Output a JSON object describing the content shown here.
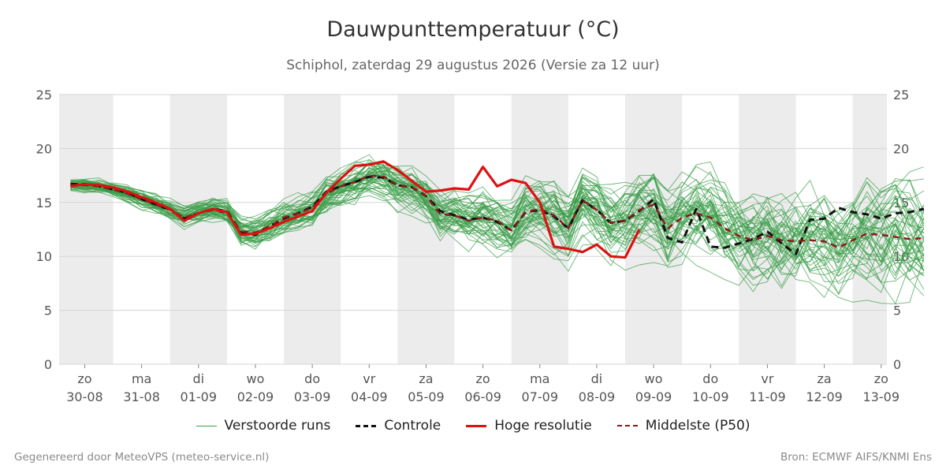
{
  "header": {
    "title": "Dauwpunttemperatuur (°C)",
    "subtitle": "Schiphol, zaterdag 29 augustus 2026 (Versie za 12 uur)"
  },
  "footer": {
    "left": "Gegenereerd door MeteoVPS (meteo-service.nl)",
    "right": "Bron: ECMWF AIFS/KNMI Ens"
  },
  "legend": [
    {
      "label": "Verstoorde runs",
      "color": "#3a9e48",
      "style": "thin"
    },
    {
      "label": "Controle",
      "color": "#111111",
      "style": "dashed"
    },
    {
      "label": "Hoge resolutie",
      "color": "#dd1111",
      "style": "solid"
    },
    {
      "label": "Middelste (P50)",
      "color": "#8b1a1a",
      "style": "dashed"
    }
  ],
  "chart_data": {
    "type": "line",
    "x_unit": "days since start of axis (day 0 = 29-08 00:00)",
    "xlim": [
      1.05,
      15.6
    ],
    "ylim": [
      0,
      25
    ],
    "y_ticks": [
      0,
      5,
      10,
      15,
      20,
      25
    ],
    "y_axis_both_sides": true,
    "grid": "horizontal",
    "shaded_days_alternating": true,
    "x_tick_labels": [
      {
        "day": "zo",
        "date": "30-08"
      },
      {
        "day": "ma",
        "date": "31-08"
      },
      {
        "day": "di",
        "date": "01-09"
      },
      {
        "day": "wo",
        "date": "02-09"
      },
      {
        "day": "do",
        "date": "03-09"
      },
      {
        "day": "vr",
        "date": "04-09"
      },
      {
        "day": "za",
        "date": "05-09"
      },
      {
        "day": "zo",
        "date": "06-09"
      },
      {
        "day": "ma",
        "date": "07-09"
      },
      {
        "day": "di",
        "date": "08-09"
      },
      {
        "day": "wo",
        "date": "09-09"
      },
      {
        "day": "do",
        "date": "10-09"
      },
      {
        "day": "vr",
        "date": "11-09"
      },
      {
        "day": "za",
        "date": "12-09"
      },
      {
        "day": "zo",
        "date": "13-09"
      }
    ],
    "x_step_days": 0.25,
    "x_first": 1.25,
    "series": [
      {
        "name": "Hoge resolutie",
        "color": "#dd1111",
        "values": [
          16.5,
          16.7,
          16.6,
          16.4,
          16.0,
          15.5,
          15.0,
          14.4,
          13.3,
          14.0,
          14.4,
          14.1,
          12.0,
          12.1,
          12.6,
          13.2,
          13.7,
          14.2,
          15.9,
          17.2,
          18.4,
          18.5,
          18.8,
          18.0,
          17.0,
          16.0,
          16.1,
          16.3,
          16.2,
          18.3,
          16.5,
          17.1,
          16.8,
          15.0,
          10.9,
          10.7,
          10.4,
          11.1,
          10.0,
          9.9,
          12.5,
          null,
          null,
          null,
          null,
          null,
          null,
          null,
          null,
          null,
          null,
          null,
          null,
          null,
          null,
          null,
          null,
          null
        ]
      },
      {
        "name": "Controle",
        "color": "#111111",
        "values": [
          16.7,
          16.7,
          16.5,
          16.2,
          15.9,
          15.3,
          14.8,
          14.3,
          13.5,
          14.0,
          14.4,
          14.2,
          12.2,
          12.0,
          12.8,
          13.5,
          14.0,
          14.6,
          16.0,
          16.5,
          16.9,
          17.4,
          17.3,
          16.6,
          16.4,
          15.6,
          14.2,
          13.8,
          13.4,
          13.6,
          13.2,
          12.4,
          14.1,
          14.3,
          13.7,
          12.6,
          15.2,
          14.3,
          13.1,
          13.3,
          14.2,
          15.3,
          11.7,
          11.3,
          14.4,
          10.9,
          10.8,
          11.2,
          11.6,
          12.3,
          11.2,
          10.2,
          13.4,
          13.5,
          14.5,
          14.1,
          13.9,
          13.5,
          14.0,
          14.1,
          14.4
        ]
      },
      {
        "name": "Middelste (P50)",
        "color": "#8b1a1a",
        "values": [
          16.6,
          16.6,
          16.5,
          16.2,
          15.8,
          15.3,
          14.8,
          14.3,
          13.6,
          14.0,
          14.3,
          14.0,
          12.3,
          12.2,
          12.8,
          13.6,
          14.0,
          14.5,
          15.8,
          16.5,
          16.9,
          17.5,
          17.4,
          16.6,
          16.4,
          15.6,
          13.9,
          13.8,
          13.3,
          13.6,
          13.3,
          12.4,
          14.1,
          14.4,
          13.8,
          12.6,
          15.2,
          14.3,
          13.1,
          13.3,
          14.3,
          14.8,
          12.6,
          13.6,
          14.0,
          13.6,
          12.6,
          11.9,
          11.5,
          11.9,
          11.5,
          11.4,
          11.5,
          11.4,
          10.8,
          11.5,
          12.1,
          12.0,
          11.8,
          11.6,
          11.7
        ]
      }
    ],
    "ensemble": {
      "name": "Verstoorde runs",
      "color": "#3a9e48",
      "members": 50,
      "spread_start": 0.5,
      "spread_end": 4.5,
      "low_envelope_end": 6.5,
      "high_envelope_end": 23.0
    }
  }
}
